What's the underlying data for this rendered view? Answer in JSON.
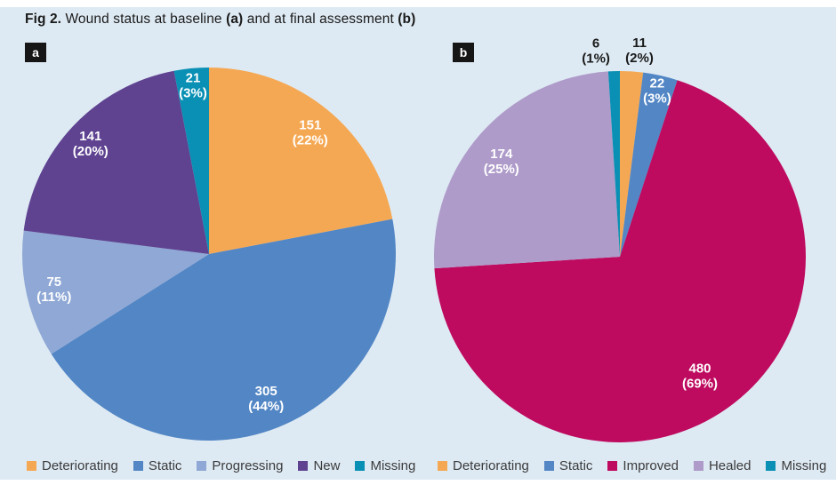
{
  "page": {
    "background": "#FFFFFF",
    "panel_background": "#DEEAF3",
    "text_color": "#1A1A1A",
    "legend_text_color": "#3B3B3C"
  },
  "title": {
    "segments": [
      {
        "text": "Fig 2.",
        "bold": true
      },
      {
        "text": " Wound status at baseline ",
        "bold": false
      },
      {
        "text": "(a)",
        "bold": true
      },
      {
        "text": " and at final assessment ",
        "bold": false
      },
      {
        "text": "(b)",
        "bold": true
      }
    ]
  },
  "chart_data": [
    {
      "type": "pie",
      "panel_label": "a",
      "description": "Wound status at baseline",
      "start_angle": 0,
      "direction": "clockwise",
      "legend_position": "bottom",
      "inside_label_color": "#FFFFFF",
      "outside_label_color": "#1A1A1A",
      "slices": [
        {
          "label": "Deteriorating",
          "value": 151,
          "pct": 22,
          "color": "#F5A853",
          "label_placement": "inside"
        },
        {
          "label": "Static",
          "value": 305,
          "pct": 44,
          "color": "#5286C5",
          "label_placement": "inside"
        },
        {
          "label": "Progressing",
          "value": 75,
          "pct": 11,
          "color": "#8FA8D5",
          "label_placement": "inside"
        },
        {
          "label": "New",
          "value": 141,
          "pct": 20,
          "color": "#5F4391",
          "label_placement": "inside"
        },
        {
          "label": "Missing",
          "value": 21,
          "pct": 3,
          "color": "#0990B4",
          "label_placement": "inside"
        }
      ]
    },
    {
      "type": "pie",
      "panel_label": "b",
      "description": "Wound status at final assessment",
      "start_angle": 0,
      "direction": "clockwise",
      "legend_position": "bottom",
      "inside_label_color": "#FFFFFF",
      "outside_label_color": "#1A1A1A",
      "slices": [
        {
          "label": "Deteriorating",
          "value": 11,
          "pct": 2,
          "color": "#F5A853",
          "label_placement": "outside"
        },
        {
          "label": "Static",
          "value": 22,
          "pct": 3,
          "color": "#5286C5",
          "label_placement": "inside"
        },
        {
          "label": "Improved",
          "value": 480,
          "pct": 69,
          "color": "#BE0A5F",
          "label_placement": "inside"
        },
        {
          "label": "Healed",
          "value": 174,
          "pct": 25,
          "color": "#AE9BC9",
          "label_placement": "inside"
        },
        {
          "label": "Missing",
          "value": 6,
          "pct": 1,
          "color": "#0990B4",
          "label_placement": "outside"
        }
      ]
    }
  ]
}
